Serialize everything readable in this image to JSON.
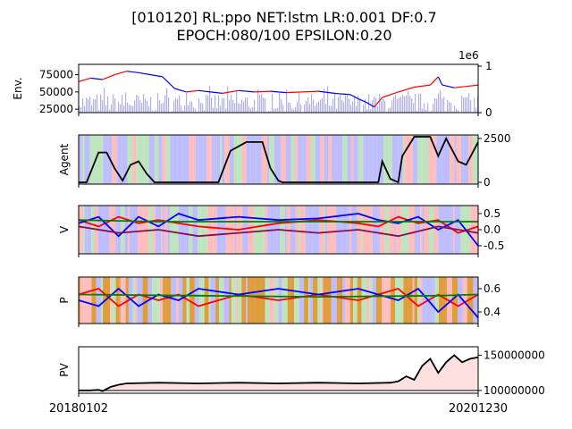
{
  "figure": {
    "title_line1": "[010120] RL:ppo NET:lstm LR:0.001 DF:0.7",
    "title_line2": "EPOCH:080/100 EPSILON:0.20"
  },
  "x_axis": {
    "start_label": "20180102",
    "end_label": "20201230"
  },
  "colors": {
    "price_up": "#ff0000",
    "price_down": "#0000ff",
    "volume": "#b0b0f0",
    "bg_buy": "#ffb3b3",
    "bg_sell": "#b3b3ff",
    "bg_hold": "#b3e0b3",
    "bg_explore": "#d98c1a",
    "pv_fill": "#ffe0e0",
    "line_buy": "#ff0000",
    "line_sell": "#0000ff",
    "line_hold": "#008000",
    "agent_line": "#000000",
    "pv_line": "#000000"
  },
  "chart_data": [
    {
      "type": "line",
      "panel": "env",
      "ylabel": "Env.",
      "yticks": [
        "75000",
        "50000",
        "25000"
      ],
      "ylim": [
        20000,
        90000
      ],
      "right_ticks": [
        "1",
        "0"
      ],
      "right_offset_label": "1e6",
      "series": [
        {
          "points": [
            [
              0,
              65000
            ],
            [
              0.03,
              70000
            ],
            [
              0.06,
              68000
            ],
            [
              0.09,
              75000
            ],
            [
              0.12,
              80000
            ],
            [
              0.15,
              78000
            ],
            [
              0.18,
              75000
            ],
            [
              0.21,
              72000
            ],
            [
              0.24,
              55000
            ],
            [
              0.27,
              50000
            ],
            [
              0.3,
              52000
            ],
            [
              0.33,
              50000
            ],
            [
              0.36,
              48000
            ],
            [
              0.4,
              52000
            ],
            [
              0.44,
              50000
            ],
            [
              0.48,
              51000
            ],
            [
              0.52,
              49000
            ],
            [
              0.56,
              50000
            ],
            [
              0.6,
              51000
            ],
            [
              0.64,
              48000
            ],
            [
              0.68,
              46000
            ],
            [
              0.7,
              40000
            ],
            [
              0.72,
              35000
            ],
            [
              0.74,
              28000
            ],
            [
              0.76,
              42000
            ],
            [
              0.8,
              50000
            ],
            [
              0.84,
              57000
            ],
            [
              0.88,
              60000
            ],
            [
              0.9,
              72000
            ],
            [
              0.91,
              60000
            ],
            [
              0.94,
              56000
            ],
            [
              0.97,
              58000
            ],
            [
              1.0,
              60000
            ]
          ]
        }
      ],
      "volume_range": [
        0,
        1000000
      ]
    },
    {
      "type": "line",
      "panel": "agent",
      "ylabel": "Agent",
      "yticks": [
        "2500",
        "0"
      ],
      "ylim": [
        -100,
        2700
      ],
      "series": [
        {
          "points": [
            [
              0,
              0
            ],
            [
              0.02,
              0
            ],
            [
              0.05,
              1700
            ],
            [
              0.07,
              1700
            ],
            [
              0.09,
              800
            ],
            [
              0.11,
              100
            ],
            [
              0.13,
              1000
            ],
            [
              0.15,
              1200
            ],
            [
              0.17,
              500
            ],
            [
              0.19,
              0
            ],
            [
              0.35,
              0
            ],
            [
              0.38,
              1800
            ],
            [
              0.42,
              2300
            ],
            [
              0.46,
              2300
            ],
            [
              0.48,
              800
            ],
            [
              0.5,
              100
            ],
            [
              0.51,
              0
            ],
            [
              0.75,
              0
            ],
            [
              0.76,
              1200
            ],
            [
              0.78,
              200
            ],
            [
              0.8,
              0
            ],
            [
              0.81,
              1500
            ],
            [
              0.84,
              2600
            ],
            [
              0.88,
              2600
            ],
            [
              0.9,
              1500
            ],
            [
              0.92,
              2500
            ],
            [
              0.95,
              1200
            ],
            [
              0.97,
              1000
            ],
            [
              1.0,
              2300
            ]
          ]
        }
      ]
    },
    {
      "type": "line",
      "panel": "value",
      "ylabel": "V",
      "yticks": [
        "0.5",
        "0.0",
        "-0.5"
      ],
      "ylim": [
        -0.75,
        0.75
      ],
      "series": [
        {
          "color": "red",
          "points": [
            [
              0,
              0.3
            ],
            [
              0.05,
              0.1
            ],
            [
              0.1,
              0.4
            ],
            [
              0.15,
              0.2
            ],
            [
              0.2,
              0.3
            ],
            [
              0.3,
              0.1
            ],
            [
              0.4,
              0.0
            ],
            [
              0.5,
              0.2
            ],
            [
              0.6,
              0.3
            ],
            [
              0.7,
              0.2
            ],
            [
              0.75,
              0.1
            ],
            [
              0.8,
              0.4
            ],
            [
              0.85,
              0.2
            ],
            [
              0.9,
              0.3
            ],
            [
              0.95,
              -0.1
            ],
            [
              1.0,
              0.1
            ]
          ]
        },
        {
          "color": "blue",
          "points": [
            [
              0,
              0.2
            ],
            [
              0.05,
              0.4
            ],
            [
              0.1,
              -0.2
            ],
            [
              0.15,
              0.4
            ],
            [
              0.2,
              0.1
            ],
            [
              0.25,
              0.5
            ],
            [
              0.3,
              0.3
            ],
            [
              0.4,
              0.4
            ],
            [
              0.5,
              0.3
            ],
            [
              0.6,
              0.35
            ],
            [
              0.7,
              0.5
            ],
            [
              0.75,
              0.3
            ],
            [
              0.8,
              0.2
            ],
            [
              0.85,
              0.4
            ],
            [
              0.9,
              0.0
            ],
            [
              0.95,
              0.3
            ],
            [
              1.0,
              -0.5
            ]
          ]
        },
        {
          "color": "purple",
          "points": [
            [
              0,
              0.1
            ],
            [
              0.1,
              -0.1
            ],
            [
              0.2,
              0.0
            ],
            [
              0.3,
              -0.2
            ],
            [
              0.4,
              -0.1
            ],
            [
              0.5,
              0.0
            ],
            [
              0.6,
              -0.1
            ],
            [
              0.7,
              0.0
            ],
            [
              0.8,
              -0.2
            ],
            [
              0.9,
              0.1
            ],
            [
              1.0,
              -0.1
            ]
          ]
        },
        {
          "color": "green",
          "points": [
            [
              0,
              0.3
            ],
            [
              0.2,
              0.25
            ],
            [
              0.5,
              0.25
            ],
            [
              0.8,
              0.25
            ],
            [
              1.0,
              0.25
            ]
          ]
        }
      ]
    },
    {
      "type": "line",
      "panel": "policy",
      "ylabel": "P",
      "yticks": [
        "0.6",
        "0.4"
      ],
      "ylim": [
        0.3,
        0.7
      ],
      "series": [
        {
          "color": "red",
          "points": [
            [
              0,
              0.55
            ],
            [
              0.05,
              0.6
            ],
            [
              0.1,
              0.45
            ],
            [
              0.15,
              0.55
            ],
            [
              0.2,
              0.5
            ],
            [
              0.25,
              0.55
            ],
            [
              0.3,
              0.45
            ],
            [
              0.4,
              0.55
            ],
            [
              0.5,
              0.5
            ],
            [
              0.6,
              0.55
            ],
            [
              0.7,
              0.5
            ],
            [
              0.8,
              0.6
            ],
            [
              0.85,
              0.45
            ],
            [
              0.9,
              0.55
            ],
            [
              0.95,
              0.45
            ],
            [
              1.0,
              0.55
            ]
          ]
        },
        {
          "color": "blue",
          "points": [
            [
              0,
              0.5
            ],
            [
              0.05,
              0.45
            ],
            [
              0.1,
              0.6
            ],
            [
              0.15,
              0.45
            ],
            [
              0.2,
              0.55
            ],
            [
              0.25,
              0.5
            ],
            [
              0.3,
              0.6
            ],
            [
              0.4,
              0.55
            ],
            [
              0.5,
              0.6
            ],
            [
              0.6,
              0.55
            ],
            [
              0.7,
              0.6
            ],
            [
              0.8,
              0.5
            ],
            [
              0.85,
              0.6
            ],
            [
              0.9,
              0.4
            ],
            [
              0.95,
              0.55
            ],
            [
              1.0,
              0.35
            ]
          ]
        },
        {
          "color": "green",
          "points": [
            [
              0,
              0.55
            ],
            [
              0.3,
              0.54
            ],
            [
              0.6,
              0.53
            ],
            [
              0.9,
              0.54
            ],
            [
              1.0,
              0.55
            ]
          ]
        }
      ]
    },
    {
      "type": "area",
      "panel": "pv",
      "ylabel": "PV",
      "yticks": [
        "150000000",
        "100000000"
      ],
      "ylim": [
        96000000,
        162000000
      ],
      "series": [
        {
          "points": [
            [
              0,
              100000000
            ],
            [
              0.03,
              100000000
            ],
            [
              0.05,
              101000000
            ],
            [
              0.06,
              99000000
            ],
            [
              0.08,
              105000000
            ],
            [
              0.1,
              108000000
            ],
            [
              0.12,
              110000000
            ],
            [
              0.2,
              111000000
            ],
            [
              0.3,
              110000000
            ],
            [
              0.4,
              111000000
            ],
            [
              0.5,
              110000000
            ],
            [
              0.6,
              111000000
            ],
            [
              0.7,
              110000000
            ],
            [
              0.78,
              111000000
            ],
            [
              0.8,
              113000000
            ],
            [
              0.82,
              120000000
            ],
            [
              0.84,
              115000000
            ],
            [
              0.86,
              135000000
            ],
            [
              0.88,
              145000000
            ],
            [
              0.9,
              125000000
            ],
            [
              0.92,
              140000000
            ],
            [
              0.94,
              150000000
            ],
            [
              0.96,
              140000000
            ],
            [
              0.98,
              145000000
            ],
            [
              1.0,
              147000000
            ]
          ]
        }
      ]
    }
  ]
}
